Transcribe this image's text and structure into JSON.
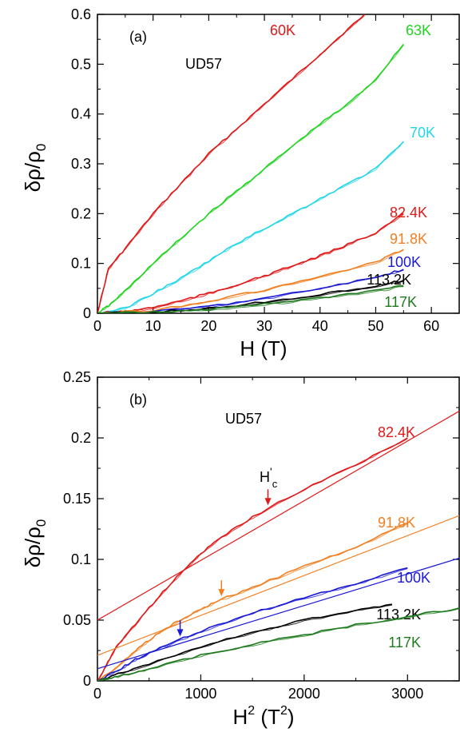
{
  "chart_data": [
    {
      "panel_label": "(a)",
      "type": "line",
      "annotation": "UD57",
      "xlabel": "H (T)",
      "ylabel_main": "δρ/ρ",
      "ylabel_sub": "0",
      "xlim": [
        0,
        65
      ],
      "ylim": [
        0,
        0.6
      ],
      "x_ticks": [
        "0",
        "10",
        "20",
        "30",
        "40",
        "50",
        "60"
      ],
      "y_ticks": [
        "0",
        "0.1",
        "0.2",
        "0.3",
        "0.4",
        "0.5",
        "0.6"
      ],
      "series": [
        {
          "name": "60K",
          "color": "#e01818",
          "x": [
            0,
            2,
            5,
            10,
            15,
            20,
            25,
            30,
            35,
            40,
            45,
            48
          ],
          "y": [
            0,
            0.09,
            0.13,
            0.2,
            0.26,
            0.32,
            0.37,
            0.42,
            0.47,
            0.52,
            0.57,
            0.6
          ]
        },
        {
          "name": "63K",
          "color": "#22d322",
          "x": [
            0,
            2,
            5,
            10,
            15,
            20,
            25,
            30,
            35,
            40,
            45,
            50,
            55
          ],
          "y": [
            0,
            0.015,
            0.045,
            0.1,
            0.15,
            0.2,
            0.245,
            0.29,
            0.335,
            0.38,
            0.42,
            0.47,
            0.54
          ]
        },
        {
          "name": "70K",
          "color": "#22d6e8",
          "x": [
            0,
            5,
            10,
            15,
            20,
            25,
            30,
            35,
            40,
            45,
            50,
            55
          ],
          "y": [
            0,
            0.01,
            0.04,
            0.07,
            0.105,
            0.14,
            0.17,
            0.2,
            0.23,
            0.26,
            0.29,
            0.345
          ]
        },
        {
          "name": "82.4K",
          "color": "#e01818",
          "x": [
            0,
            5,
            10,
            15,
            20,
            25,
            30,
            35,
            40,
            45,
            50,
            55
          ],
          "y": [
            0,
            0.003,
            0.012,
            0.025,
            0.04,
            0.057,
            0.075,
            0.095,
            0.115,
            0.138,
            0.162,
            0.2
          ]
        },
        {
          "name": "91.8K",
          "color": "#f07f22",
          "x": [
            0,
            10,
            20,
            30,
            40,
            50,
            55
          ],
          "y": [
            0,
            0.006,
            0.024,
            0.047,
            0.073,
            0.102,
            0.128
          ]
        },
        {
          "name": "100K",
          "color": "#1a1ad4",
          "x": [
            0,
            10,
            20,
            30,
            40,
            50,
            55
          ],
          "y": [
            0,
            0.003,
            0.014,
            0.03,
            0.05,
            0.072,
            0.088
          ]
        },
        {
          "name": "113.2K",
          "color": "#000000",
          "x": [
            0,
            10,
            20,
            30,
            40,
            50,
            55
          ],
          "y": [
            0,
            0.002,
            0.01,
            0.022,
            0.038,
            0.055,
            0.066
          ]
        },
        {
          "name": "117K",
          "color": "#1f7a1f",
          "x": [
            0,
            10,
            20,
            30,
            40,
            50,
            55
          ],
          "y": [
            0,
            0.002,
            0.008,
            0.018,
            0.03,
            0.045,
            0.055
          ]
        }
      ]
    },
    {
      "panel_label": "(b)",
      "type": "line",
      "annotation": "UD57",
      "hc_main": "H",
      "hc_prime": "'",
      "hc_sub": "c",
      "xlabel_main": "H",
      "xlabel_sup": "2",
      "xlabel_units_open": " (T",
      "xlabel_units_sup": "2",
      "xlabel_units_close": ")",
      "ylabel_main": "δρ/ρ",
      "ylabel_sub": "0",
      "xlim": [
        0,
        3500
      ],
      "ylim": [
        0,
        0.25
      ],
      "x_ticks": [
        "0",
        "1000",
        "2000",
        "3000"
      ],
      "y_ticks": [
        "0",
        "0.05",
        "0.1",
        "0.15",
        "0.2",
        "0.25"
      ],
      "series": [
        {
          "name": "82.4K",
          "color": "#e01818",
          "x": [
            0,
            100,
            200,
            400,
            600,
            800,
            1000,
            1200,
            1500,
            2000,
            2500,
            3000
          ],
          "y": [
            0,
            0.015,
            0.03,
            0.05,
            0.07,
            0.088,
            0.105,
            0.118,
            0.135,
            0.158,
            0.178,
            0.2
          ],
          "fit": {
            "x": [
              0,
              3500
            ],
            "y": [
              0.05,
              0.222
            ]
          },
          "arrow_x": 1650
        },
        {
          "name": "91.8K",
          "color": "#f07f22",
          "x": [
            0,
            200,
            400,
            600,
            800,
            1000,
            1200,
            1500,
            2000,
            2500,
            3000
          ],
          "y": [
            0,
            0.012,
            0.027,
            0.04,
            0.05,
            0.059,
            0.067,
            0.077,
            0.094,
            0.11,
            0.13
          ],
          "fit": {
            "x": [
              0,
              3500
            ],
            "y": [
              0.021,
              0.136
            ]
          },
          "arrow_x": 1200
        },
        {
          "name": "100K",
          "color": "#1a1ad4",
          "x": [
            0,
            200,
            400,
            600,
            800,
            1000,
            1500,
            2000,
            2500,
            3000
          ],
          "y": [
            0,
            0.009,
            0.019,
            0.027,
            0.034,
            0.041,
            0.056,
            0.068,
            0.08,
            0.093
          ],
          "fit": {
            "x": [
              0,
              3500
            ],
            "y": [
              0.01,
              0.101
            ]
          },
          "arrow_x": 800
        },
        {
          "name": "113.2K",
          "color": "#000000",
          "x": [
            0,
            200,
            500,
            1000,
            1500,
            2000,
            2500,
            2850
          ],
          "y": [
            0,
            0.006,
            0.014,
            0.028,
            0.04,
            0.05,
            0.058,
            0.063
          ]
        },
        {
          "name": "117K",
          "color": "#1f7a1f",
          "x": [
            0,
            200,
            500,
            1000,
            1500,
            2000,
            2500,
            3000,
            3500
          ],
          "y": [
            0,
            0.004,
            0.01,
            0.021,
            0.03,
            0.038,
            0.046,
            0.053,
            0.06
          ]
        }
      ]
    }
  ]
}
